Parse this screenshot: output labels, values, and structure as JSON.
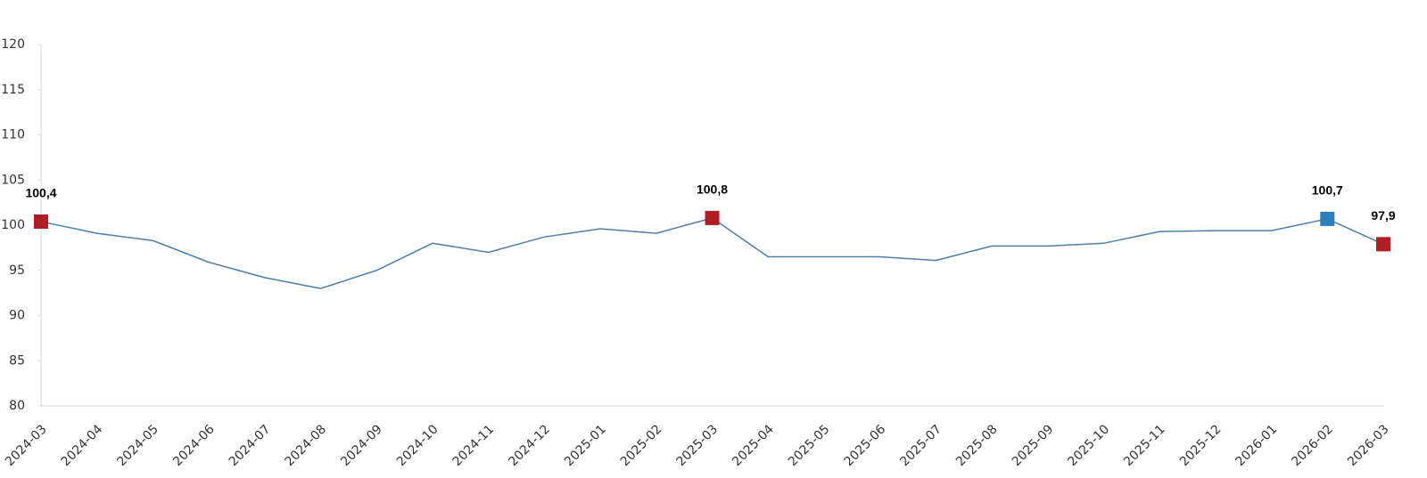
{
  "chart_data": {
    "type": "line",
    "categories": [
      "2024-03",
      "2024-04",
      "2024-05",
      "2024-06",
      "2024-07",
      "2024-08",
      "2024-09",
      "2024-10",
      "2024-11",
      "2024-12",
      "2025-01",
      "2025-02",
      "2025-03",
      "2025-04",
      "2025-05",
      "2025-06",
      "2025-07",
      "2025-08",
      "2025-09",
      "2025-10",
      "2025-11",
      "2025-12",
      "2026-01",
      "2026-02",
      "2026-03"
    ],
    "series": [
      {
        "color": "#4a7fa8",
        "values": [
          100.4,
          99.1,
          98.3,
          95.9,
          94.2,
          93.0,
          95.0,
          98.0,
          97.0,
          98.7,
          99.6,
          99.1,
          100.8,
          96.5,
          96.5,
          96.5,
          96.1,
          97.7,
          97.7,
          98.0,
          99.3,
          99.4,
          99.4,
          100.7,
          97.9
        ],
        "value_labels": [
          "100,4",
          null,
          null,
          null,
          null,
          null,
          null,
          null,
          null,
          null,
          null,
          null,
          "100,8",
          null,
          null,
          null,
          null,
          null,
          null,
          null,
          null,
          null,
          null,
          "100,7",
          "97,9"
        ],
        "marker_colors": [
          "#b01c24",
          null,
          null,
          null,
          null,
          null,
          null,
          null,
          null,
          null,
          null,
          null,
          "#b01c24",
          null,
          null,
          null,
          null,
          null,
          null,
          null,
          null,
          null,
          null,
          "#2e7dbb",
          "#b01c24"
        ]
      }
    ],
    "ylim": [
      80,
      120
    ],
    "yticks": [
      80,
      85,
      90,
      95,
      100,
      105,
      110,
      115,
      120
    ],
    "grid": false
  }
}
